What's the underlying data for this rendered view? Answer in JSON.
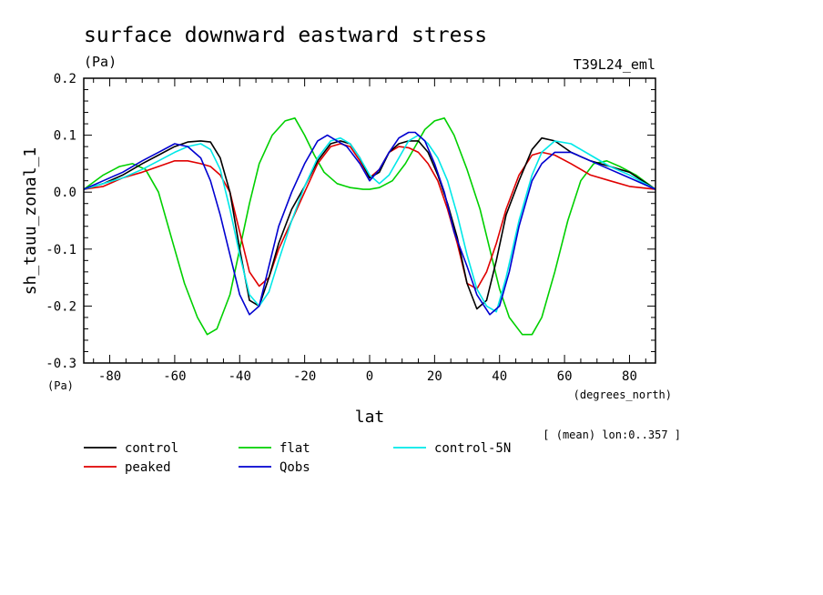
{
  "chart_data": {
    "type": "line",
    "title": "surface downward eastward stress",
    "units_label": "(Pa)",
    "experiment_label": "T39L24_eml",
    "xlabel": "lat",
    "x_units": "(degrees_north)",
    "ylabel": "sh_tauu_zonal_1",
    "y_units": "(Pa)",
    "averaging_note": "[ (mean) lon:0..357 ]",
    "xlim": [
      -88,
      88
    ],
    "ylim": [
      -0.3,
      0.2
    ],
    "xticks": [
      -80,
      -60,
      -40,
      -20,
      0,
      20,
      40,
      60,
      80
    ],
    "xtick_labels": [
      "-80",
      "-60",
      "-40",
      "-20",
      "0",
      "20",
      "40",
      "60",
      "80"
    ],
    "yticks": [
      -0.3,
      -0.2,
      -0.1,
      0.0,
      0.1,
      0.2
    ],
    "ytick_labels": [
      "-0.3",
      "-0.2",
      "-0.1",
      "0.0",
      "0.1",
      "0.2"
    ],
    "grid": false,
    "legend_position": "below plot",
    "series": [
      {
        "name": "control",
        "color": "#000000",
        "x": [
          -88,
          -82,
          -76,
          -70,
          -65,
          -60,
          -56,
          -52,
          -49,
          -46,
          -43,
          -40,
          -37,
          -34,
          -31,
          -28,
          -24,
          -20,
          -16,
          -12,
          -9,
          -6,
          -3,
          0,
          3,
          6,
          9,
          12,
          15,
          18,
          21,
          24,
          27,
          30,
          33,
          36,
          39,
          42,
          46,
          50,
          53,
          57,
          62,
          68,
          74,
          80,
          88
        ],
        "y": [
          0.005,
          0.015,
          0.03,
          0.05,
          0.065,
          0.08,
          0.088,
          0.09,
          0.088,
          0.06,
          0.0,
          -0.1,
          -0.19,
          -0.2,
          -0.15,
          -0.09,
          -0.03,
          0.01,
          0.055,
          0.085,
          0.09,
          0.085,
          0.06,
          0.025,
          0.035,
          0.07,
          0.085,
          0.09,
          0.09,
          0.07,
          0.03,
          -0.02,
          -0.08,
          -0.16,
          -0.205,
          -0.19,
          -0.12,
          -0.04,
          0.02,
          0.075,
          0.095,
          0.09,
          0.07,
          0.055,
          0.045,
          0.035,
          0.005
        ]
      },
      {
        "name": "peaked",
        "color": "#e00000",
        "x": [
          -88,
          -82,
          -76,
          -70,
          -65,
          -60,
          -56,
          -52,
          -49,
          -46,
          -43,
          -40,
          -37,
          -34,
          -31,
          -28,
          -24,
          -20,
          -16,
          -12,
          -9,
          -6,
          -3,
          0,
          3,
          6,
          9,
          12,
          15,
          18,
          21,
          24,
          27,
          30,
          33,
          36,
          39,
          42,
          46,
          50,
          53,
          57,
          62,
          68,
          74,
          80,
          88
        ],
        "y": [
          0.005,
          0.01,
          0.025,
          0.035,
          0.045,
          0.055,
          0.055,
          0.05,
          0.045,
          0.03,
          0.0,
          -0.07,
          -0.14,
          -0.165,
          -0.15,
          -0.1,
          -0.05,
          0.0,
          0.05,
          0.08,
          0.085,
          0.08,
          0.055,
          0.025,
          0.04,
          0.07,
          0.08,
          0.078,
          0.07,
          0.05,
          0.02,
          -0.03,
          -0.09,
          -0.16,
          -0.17,
          -0.14,
          -0.09,
          -0.03,
          0.03,
          0.065,
          0.07,
          0.065,
          0.05,
          0.03,
          0.02,
          0.01,
          0.005
        ]
      },
      {
        "name": "flat",
        "color": "#00d000",
        "x": [
          -88,
          -82,
          -77,
          -73,
          -69,
          -65,
          -61,
          -57,
          -53,
          -50,
          -47,
          -43,
          -40,
          -37,
          -34,
          -30,
          -26,
          -23,
          -20,
          -17,
          -14,
          -10,
          -6,
          -2,
          0,
          3,
          7,
          11,
          14,
          17,
          20,
          23,
          26,
          30,
          34,
          37,
          40,
          43,
          47,
          50,
          53,
          57,
          61,
          65,
          69,
          73,
          77,
          82,
          88
        ],
        "y": [
          0.005,
          0.03,
          0.045,
          0.05,
          0.04,
          0.0,
          -0.08,
          -0.16,
          -0.22,
          -0.25,
          -0.24,
          -0.18,
          -0.1,
          -0.02,
          0.05,
          0.1,
          0.125,
          0.13,
          0.1,
          0.065,
          0.035,
          0.015,
          0.008,
          0.005,
          0.005,
          0.008,
          0.02,
          0.05,
          0.08,
          0.11,
          0.125,
          0.13,
          0.1,
          0.04,
          -0.03,
          -0.1,
          -0.17,
          -0.22,
          -0.25,
          -0.25,
          -0.22,
          -0.14,
          -0.05,
          0.02,
          0.05,
          0.055,
          0.045,
          0.03,
          0.005
        ]
      },
      {
        "name": "control-5N",
        "color": "#00e8e8",
        "x": [
          -88,
          -82,
          -76,
          -70,
          -65,
          -60,
          -56,
          -52,
          -49,
          -46,
          -43,
          -40,
          -37,
          -34,
          -31,
          -28,
          -24,
          -20,
          -16,
          -12,
          -9,
          -6,
          -3,
          0,
          3,
          6,
          9,
          12,
          15,
          18,
          21,
          24,
          27,
          30,
          33,
          36,
          39,
          42,
          46,
          50,
          53,
          57,
          62,
          68,
          74,
          80,
          88
        ],
        "y": [
          0.005,
          0.015,
          0.025,
          0.04,
          0.055,
          0.07,
          0.08,
          0.085,
          0.075,
          0.04,
          -0.03,
          -0.11,
          -0.18,
          -0.2,
          -0.175,
          -0.12,
          -0.05,
          0.01,
          0.06,
          0.09,
          0.095,
          0.085,
          0.06,
          0.03,
          0.015,
          0.03,
          0.06,
          0.09,
          0.1,
          0.085,
          0.06,
          0.02,
          -0.04,
          -0.11,
          -0.17,
          -0.2,
          -0.21,
          -0.15,
          -0.05,
          0.03,
          0.07,
          0.09,
          0.085,
          0.065,
          0.045,
          0.03,
          0.005
        ]
      },
      {
        "name": "Qobs",
        "color": "#0000d0",
        "x": [
          -88,
          -82,
          -76,
          -70,
          -65,
          -60,
          -56,
          -52,
          -49,
          -46,
          -43,
          -40,
          -37,
          -34,
          -31,
          -28,
          -24,
          -20,
          -16,
          -13,
          -10,
          -7,
          -3,
          0,
          3,
          6,
          9,
          12,
          14,
          17,
          20,
          23,
          26,
          30,
          33,
          37,
          40,
          43,
          46,
          50,
          53,
          57,
          62,
          68,
          74,
          80,
          88
        ],
        "y": [
          0.005,
          0.02,
          0.035,
          0.055,
          0.07,
          0.085,
          0.08,
          0.06,
          0.02,
          -0.04,
          -0.11,
          -0.18,
          -0.215,
          -0.2,
          -0.13,
          -0.06,
          0.0,
          0.05,
          0.09,
          0.1,
          0.09,
          0.08,
          0.05,
          0.02,
          0.04,
          0.07,
          0.095,
          0.105,
          0.105,
          0.09,
          0.05,
          0.0,
          -0.07,
          -0.13,
          -0.18,
          -0.215,
          -0.2,
          -0.14,
          -0.06,
          0.02,
          0.05,
          0.07,
          0.07,
          0.055,
          0.04,
          0.025,
          0.005
        ]
      }
    ]
  }
}
